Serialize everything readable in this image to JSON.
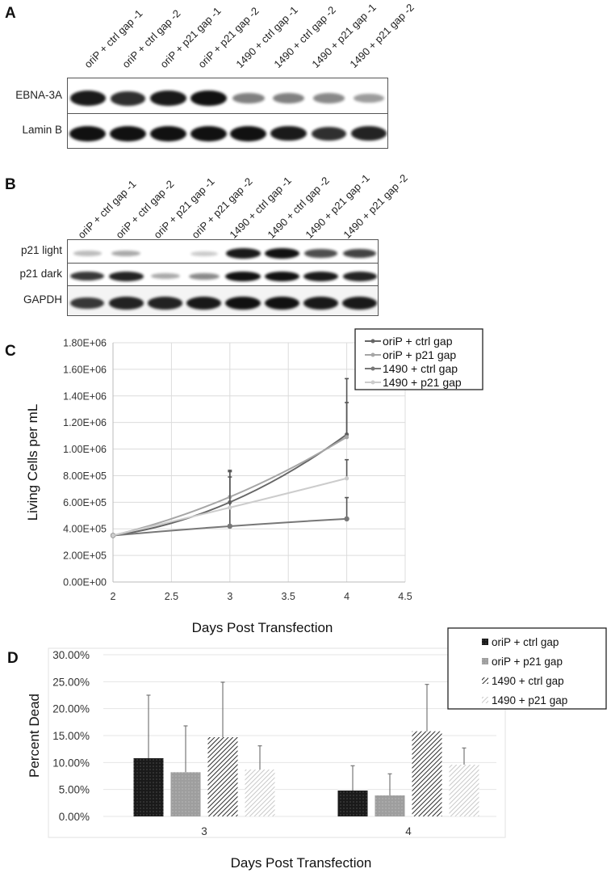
{
  "panels": {
    "A": {
      "letter": "A",
      "lanes": [
        "oriP + ctrl gap -1",
        "oriP + ctrl gap -2",
        "oriP + p21 gap -1",
        "oriP + p21 gap -2",
        "1490 + ctrl gap -1",
        "1490 + ctrl gap -2",
        "1490 + p21 gap -1",
        "1490 + p21 gap -2"
      ],
      "rows": [
        {
          "label": "EBNA-3A",
          "intensity": [
            0.95,
            0.85,
            0.95,
            1.0,
            0.45,
            0.45,
            0.4,
            0.3
          ]
        },
        {
          "label": "Lamin B",
          "intensity": [
            1.0,
            1.0,
            1.0,
            1.0,
            1.0,
            0.95,
            0.85,
            0.9
          ]
        }
      ]
    },
    "B": {
      "letter": "B",
      "lanes": [
        "oriP + ctrl gap -1",
        "oriP + ctrl gap -2",
        "oriP + p21 gap -1",
        "oriP + p21 gap -2",
        "1490 + ctrl gap -1",
        "1490 + ctrl gap -2",
        "1490 + p21 gap -1",
        "1490 + p21 gap -2"
      ],
      "rows": [
        {
          "label": "p21 light",
          "intensity": [
            0.15,
            0.25,
            0.0,
            0.08,
            0.95,
            1.0,
            0.7,
            0.75
          ]
        },
        {
          "label": "p21 dark",
          "intensity": [
            0.8,
            0.9,
            0.25,
            0.4,
            1.0,
            1.0,
            0.95,
            0.9
          ]
        },
        {
          "label": "GAPDH",
          "intensity": [
            0.8,
            0.9,
            0.9,
            0.95,
            1.0,
            1.0,
            0.95,
            0.95
          ]
        }
      ]
    }
  },
  "chart_data": [
    {
      "panel": "C",
      "type": "line",
      "title": "",
      "xlabel": "Days Post Transfection",
      "ylabel": "Living Cells per mL",
      "xlim": [
        2,
        4.5
      ],
      "ylim": [
        0,
        1800000
      ],
      "xticks": [
        "2",
        "2.5",
        "3",
        "3.5",
        "4",
        "4.5"
      ],
      "yticks": [
        "0.00E+00",
        "2.00E+05",
        "4.00E+05",
        "6.00E+05",
        "8.00E+05",
        "1.00E+06",
        "1.20E+06",
        "1.40E+06",
        "1.60E+06",
        "1.80E+06"
      ],
      "grid": true,
      "legend_position": "top-right",
      "x": [
        2,
        3,
        4
      ],
      "series": [
        {
          "name": "oriP + ctrl gap",
          "color": "#666666",
          "values": [
            350000,
            600000,
            1110000
          ],
          "errors": [
            0,
            190000,
            240000
          ]
        },
        {
          "name": "oriP + p21 gap",
          "color": "#a6a6a6",
          "values": [
            350000,
            640000,
            1090000
          ],
          "errors": [
            0,
            190000,
            440000
          ]
        },
        {
          "name": "1490 + ctrl gap",
          "color": "#777777",
          "values": [
            350000,
            420000,
            475000
          ],
          "errors": [
            0,
            420000,
            160000
          ]
        },
        {
          "name": "1490 + p21 gap",
          "color": "#cccccc",
          "values": [
            350000,
            560000,
            780000
          ],
          "errors": [
            0,
            0,
            140000
          ]
        }
      ]
    },
    {
      "panel": "D",
      "type": "bar",
      "title": "Days Post Transfection",
      "xlabel": "Days Post Transfection",
      "ylabel": "Percent Dead",
      "categories": [
        "3",
        "4"
      ],
      "ylim": [
        0,
        0.3
      ],
      "yticks": [
        "0.00%",
        "5.00%",
        "10.00%",
        "15.00%",
        "20.00%",
        "25.00%",
        "30.00%"
      ],
      "grid": true,
      "legend_position": "top-right",
      "series": [
        {
          "name": "oriP + ctrl gap",
          "color": "#1a1a1a",
          "pattern": "dots-dark",
          "values": [
            0.108,
            0.048
          ],
          "errors": [
            0.117,
            0.046
          ]
        },
        {
          "name": "oriP + p21 gap",
          "color": "#9e9e9e",
          "pattern": "dots-light",
          "values": [
            0.082,
            0.039
          ],
          "errors": [
            0.086,
            0.04
          ]
        },
        {
          "name": "1490 + ctrl gap",
          "color": "#2a2a2a",
          "pattern": "hatch-dark",
          "values": [
            0.147,
            0.158
          ],
          "errors": [
            0.102,
            0.087
          ]
        },
        {
          "name": "1490 + p21 gap",
          "color": "#c8c8c8",
          "pattern": "hatch-light",
          "values": [
            0.087,
            0.096
          ],
          "errors": [
            0.044,
            0.031
          ]
        }
      ]
    }
  ],
  "labels": {
    "C_letter": "C",
    "D_letter": "D"
  }
}
